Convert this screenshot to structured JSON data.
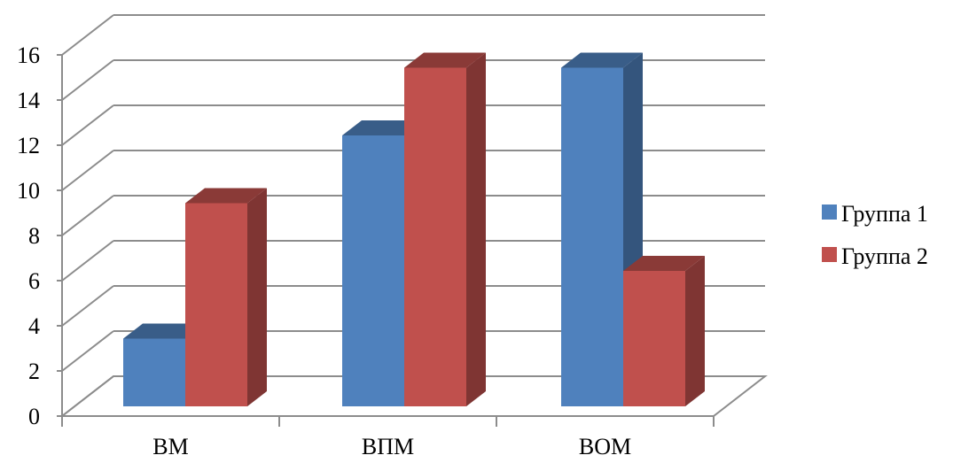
{
  "chart_data": {
    "type": "bar",
    "style": "3d-clustered-column",
    "categories": [
      "ВМ",
      "ВПМ",
      "ВОМ"
    ],
    "series": [
      {
        "name": "Группа 1",
        "values": [
          3,
          12,
          15
        ],
        "color": "#4F81BD"
      },
      {
        "name": "Группа 2",
        "values": [
          9,
          15,
          6
        ],
        "color": "#C0504D"
      }
    ],
    "y_ticks": [
      "0",
      "2",
      "4",
      "6",
      "8",
      "10",
      "12",
      "14",
      "16"
    ],
    "ylim": [
      0,
      16
    ],
    "grid": true,
    "legend_position": "right",
    "gridline_color": "#8C8C8C"
  }
}
